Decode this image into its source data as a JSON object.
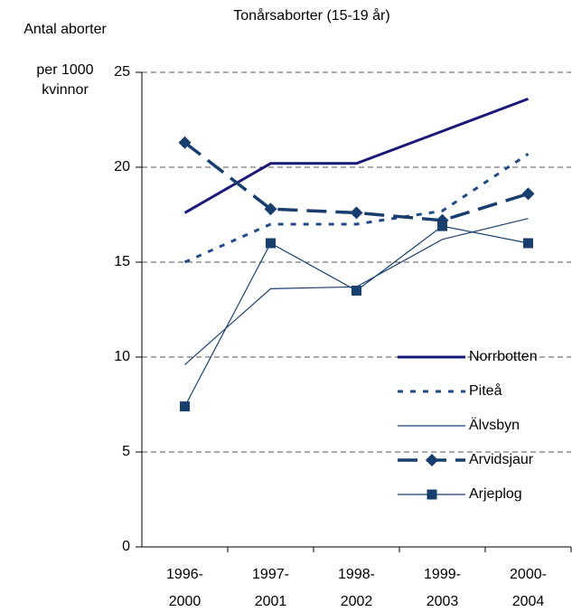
{
  "chart_data": {
    "type": "line",
    "title": "Tonårsaborter (15-19 år)",
    "y_label": [
      "Antal aborter",
      "per 1000",
      "kvinnor"
    ],
    "categories": [
      "1996-2000",
      "1997-2001",
      "1998-2002",
      "1999-2003",
      "2000-2004"
    ],
    "series": [
      {
        "name": "Norrbotten",
        "color": "#1a1a78",
        "values": [
          17.6,
          20.2,
          20.2,
          21.9,
          23.6
        ]
      },
      {
        "name": "Piteå",
        "color": "#1f4b8a",
        "values": [
          15.0,
          17.0,
          17.0,
          17.7,
          20.7
        ]
      },
      {
        "name": "Älvsbyn",
        "color": "#1d3f70",
        "values": [
          9.6,
          13.6,
          13.7,
          16.2,
          17.3
        ]
      },
      {
        "name": "Arvidsjaur",
        "color": "#173e6e",
        "values": [
          21.3,
          17.8,
          17.6,
          17.2,
          18.6
        ]
      },
      {
        "name": "Arjeplog",
        "color": "#17406e",
        "values": [
          7.4,
          16.0,
          13.5,
          16.9,
          16.0
        ]
      }
    ],
    "ylim": [
      0,
      25
    ],
    "yticks": [
      0,
      5,
      10,
      15,
      20,
      25
    ],
    "grid": true
  }
}
